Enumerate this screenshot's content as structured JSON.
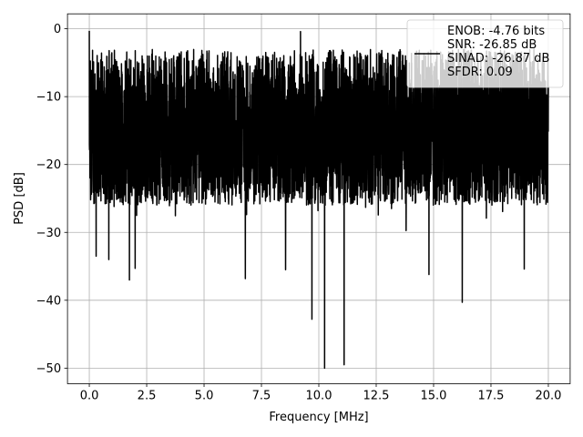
{
  "chart_data": {
    "type": "line",
    "title": "",
    "xlabel": "Frequency [MHz]",
    "ylabel": "PSD [dB]",
    "xlim": [
      -0.95,
      20.95
    ],
    "ylim": [
      -52.3,
      2.2
    ],
    "xticks": [
      0.0,
      2.5,
      5.0,
      7.5,
      10.0,
      12.5,
      15.0,
      17.5,
      20.0
    ],
    "xtick_labels": [
      "0.0",
      "2.5",
      "5.0",
      "7.5",
      "10.0",
      "12.5",
      "15.0",
      "17.5",
      "20.0"
    ],
    "yticks": [
      0,
      -10,
      -20,
      -30,
      -40,
      -50
    ],
    "ytick_labels": [
      "0",
      "−10",
      "−20",
      "−30",
      "−40",
      "−50"
    ],
    "grid": true,
    "legend_position": "top-right",
    "legend_lines": [
      "ENOB: -4.76 bits",
      "SNR: -26.85 dB",
      "SINAD: -26.87 dB",
      "SFDR: 0.09"
    ],
    "series": [
      {
        "color": "#000000",
        "x_range": [
          0.0,
          20.0
        ],
        "num_points": 4096,
        "envelope_top": -3,
        "envelope_bottom": -26,
        "notable_points": [
          {
            "x": 0.0,
            "y": -0.3
          },
          {
            "x": 0.3,
            "y": -33.5
          },
          {
            "x": 0.85,
            "y": -34.0
          },
          {
            "x": 1.75,
            "y": -37.0
          },
          {
            "x": 2.0,
            "y": -35.3
          },
          {
            "x": 6.8,
            "y": -36.8
          },
          {
            "x": 8.55,
            "y": -35.5
          },
          {
            "x": 9.7,
            "y": -42.8
          },
          {
            "x": 10.25,
            "y": -50.0
          },
          {
            "x": 11.1,
            "y": -49.5
          },
          {
            "x": 14.8,
            "y": -36.2
          },
          {
            "x": 16.25,
            "y": -40.3
          },
          {
            "x": 18.95,
            "y": -35.4
          },
          {
            "x": 9.2,
            "y": -0.4
          }
        ]
      }
    ]
  }
}
